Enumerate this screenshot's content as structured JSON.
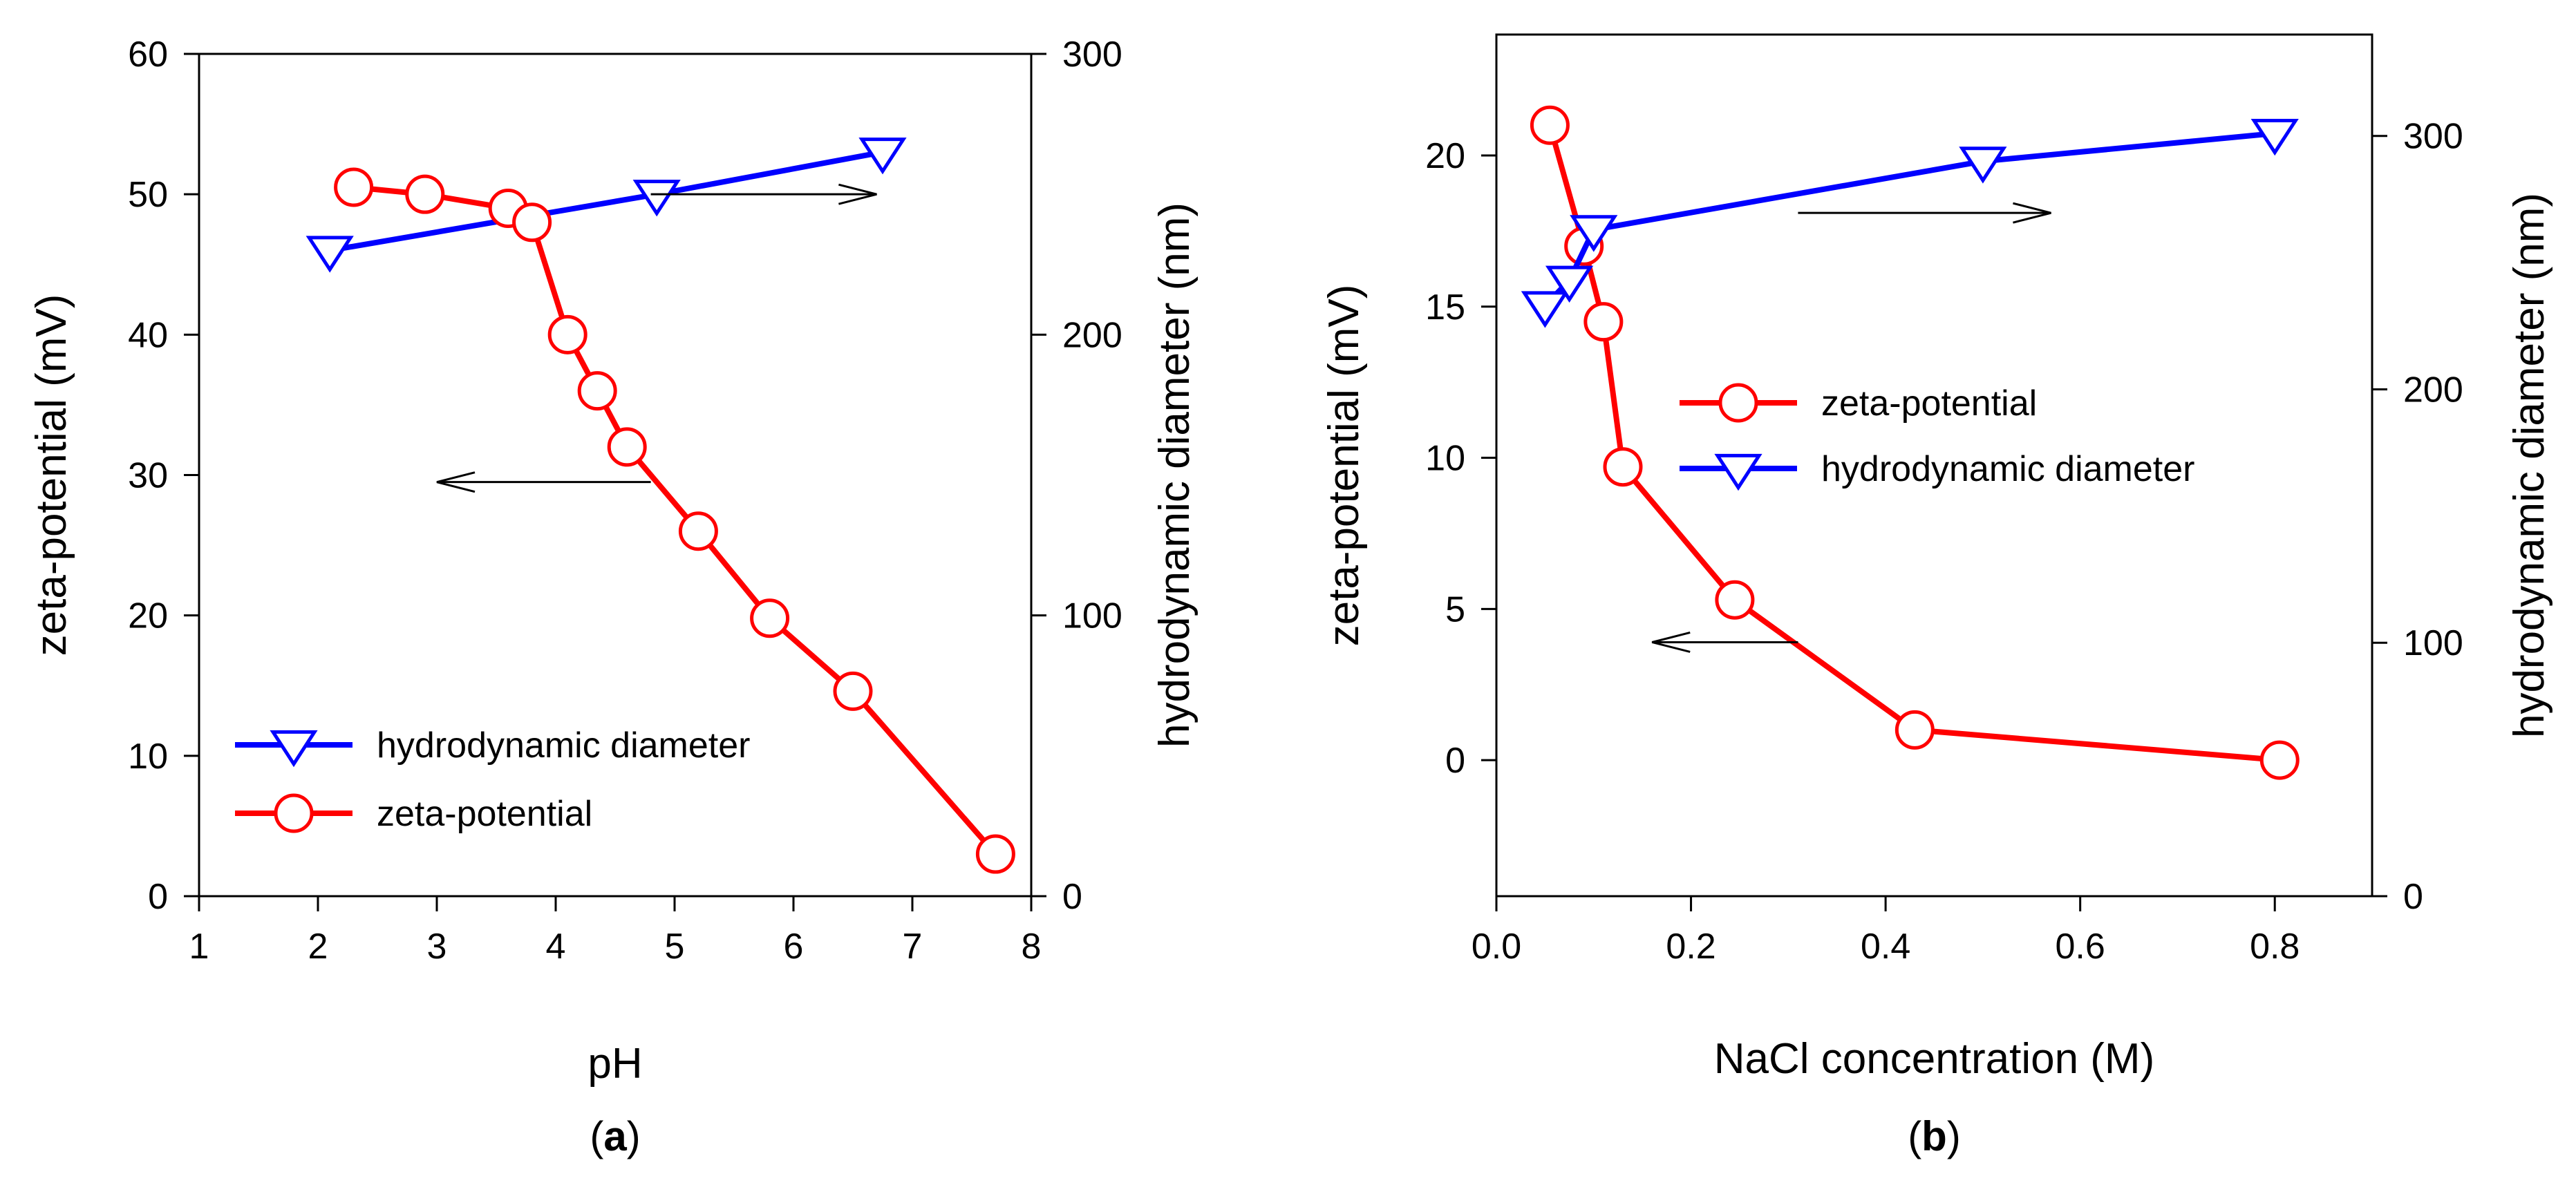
{
  "chart_data": [
    {
      "type": "line",
      "panel_label": "a",
      "xlabel": "pH",
      "ylabel_left": "zeta-potential (mV)",
      "ylabel_right": "hydrodynamic diameter (nm)",
      "xlim": [
        1,
        8
      ],
      "ylim_left": [
        0,
        60
      ],
      "ylim_right": [
        0,
        300
      ],
      "xticks": [
        1,
        2,
        3,
        4,
        5,
        6,
        7,
        8
      ],
      "yticks_left": [
        0,
        10,
        20,
        30,
        40,
        50,
        60
      ],
      "yticks_right": [
        0,
        100,
        200,
        300
      ],
      "series": [
        {
          "name": "hydrodynamic diameter",
          "axis": "right",
          "color": "#0000ff",
          "marker": "triangle-down",
          "x": [
            2.1,
            4.85,
            6.75
          ],
          "y": [
            230,
            250,
            265
          ]
        },
        {
          "name": "zeta-potential",
          "axis": "left",
          "color": "#ff0000",
          "marker": "circle",
          "x": [
            2.3,
            2.9,
            3.6,
            3.8,
            4.1,
            4.35,
            4.6,
            5.2,
            5.8,
            6.5,
            7.7
          ],
          "y": [
            50.5,
            50,
            49,
            48,
            40,
            36,
            32,
            26,
            19.8,
            14.6,
            3
          ]
        }
      ],
      "legend": {
        "placement": "lower-left",
        "entries": [
          "hydrodynamic diameter",
          "zeta-potential"
        ]
      },
      "annotations": [
        {
          "type": "arrow",
          "direction": "right",
          "from": [
            4.8,
            50
          ],
          "to": [
            6.7,
            50
          ],
          "meaning": "points to right axis"
        },
        {
          "type": "arrow",
          "direction": "left",
          "from": [
            4.8,
            29.5
          ],
          "to": [
            3.0,
            29.5
          ],
          "meaning": "points to left axis"
        }
      ]
    },
    {
      "type": "line",
      "panel_label": "b",
      "xlabel": "NaCl concentration (M)",
      "ylabel_left": "zeta-potential (mV)",
      "ylabel_right": "hydrodynamic diameter (nm)",
      "xlim": [
        0,
        0.9
      ],
      "ylim_left": [
        -4.5,
        24
      ],
      "ylim_right": [
        0,
        340
      ],
      "xticks": [
        0.0,
        0.2,
        0.4,
        0.6,
        0.8
      ],
      "xtick_labels": [
        "0.0",
        "0.2",
        "0.4",
        "0.6",
        "0.8"
      ],
      "yticks_left": [
        0,
        5,
        10,
        15,
        20
      ],
      "yticks_right": [
        0,
        100,
        200,
        300
      ],
      "series": [
        {
          "name": "zeta-potential",
          "axis": "left",
          "color": "#ff0000",
          "marker": "circle",
          "x": [
            0.055,
            0.09,
            0.11,
            0.13,
            0.245,
            0.43,
            0.805
          ],
          "y": [
            21,
            17,
            14.5,
            9.7,
            5.3,
            1,
            0
          ]
        },
        {
          "name": "hydrodynamic diameter",
          "axis": "right",
          "color": "#0000ff",
          "marker": "triangle-down",
          "x": [
            0.05,
            0.075,
            0.1,
            0.5,
            0.8
          ],
          "y": [
            233,
            243,
            263,
            290,
            301
          ]
        }
      ],
      "legend": {
        "placement": "center-right",
        "entries": [
          "zeta-potential",
          "hydrodynamic diameter"
        ]
      },
      "annotations": [
        {
          "type": "arrow",
          "direction": "right",
          "from": [
            0.31,
            18.1
          ],
          "to": [
            0.57,
            18.1
          ],
          "meaning": "points to right axis"
        },
        {
          "type": "arrow",
          "direction": "left",
          "from": [
            0.31,
            3.9
          ],
          "to": [
            0.16,
            3.9
          ],
          "meaning": "points to left axis"
        }
      ]
    }
  ]
}
